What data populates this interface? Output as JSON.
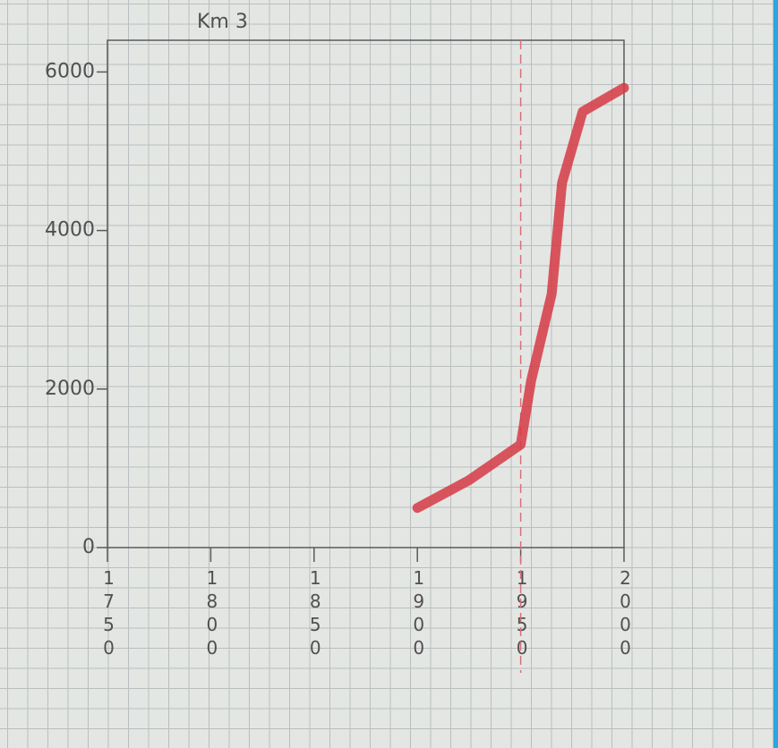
{
  "chart_data": {
    "type": "line",
    "title": "Km 3",
    "x": [
      1900,
      1925,
      1950,
      1955,
      1965,
      1970,
      1980,
      2000
    ],
    "series": [
      {
        "color": "#d63a45",
        "values": [
          500,
          850,
          1300,
          2100,
          3200,
          4600,
          5500,
          5800
        ]
      }
    ],
    "xlim": [
      1750,
      2000
    ],
    "xticks": [
      1750,
      1800,
      1850,
      1900,
      1950,
      2000
    ],
    "ylim": [
      0,
      6400
    ],
    "yticks": [
      0,
      2000,
      4000,
      6000
    ],
    "vlines": [
      1950
    ],
    "vline_color": "#d9707a"
  }
}
